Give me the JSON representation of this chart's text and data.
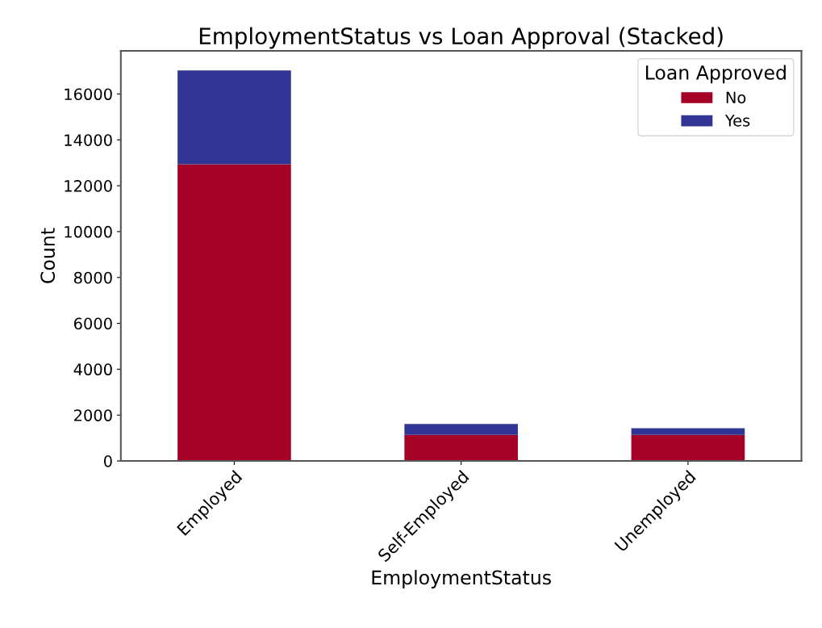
{
  "chart_data": {
    "type": "bar",
    "title": "EmploymentStatus vs Loan Approval (Stacked)",
    "xlabel": "EmploymentStatus",
    "ylabel": "Count",
    "legend_title": "Loan Approved",
    "categories": [
      "Employed",
      "Self-Employed",
      "Unemployed"
    ],
    "stacked": true,
    "legend": "top right",
    "grid": false,
    "series": [
      {
        "name": "No",
        "color": "#a50026",
        "values": [
          12940,
          1140,
          1140
        ]
      },
      {
        "name": "Yes",
        "color": "#313695",
        "values": [
          4090,
          470,
          290
        ]
      }
    ],
    "ylim": [
      0,
      17880
    ],
    "yticks": [
      0,
      2000,
      4000,
      6000,
      8000,
      10000,
      12000,
      14000,
      16000
    ]
  }
}
